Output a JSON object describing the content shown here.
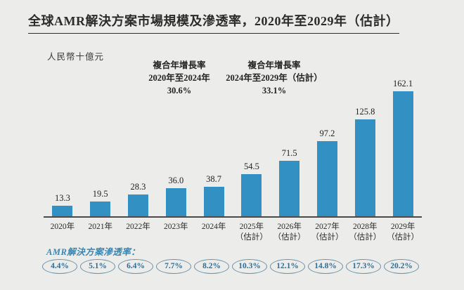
{
  "title": "全球AMR解決方案市場規模及滲透率，2020年至2029年（估計）",
  "unit_label": "人民幣十億元",
  "annotations": [
    {
      "line1": "複合年增長率",
      "line2": "2020年至2024年",
      "value": "30.6%"
    },
    {
      "line1": "複合年增長率",
      "line2": "2024年至2029年（估計）",
      "value": "33.1%"
    }
  ],
  "chart_data": {
    "type": "bar",
    "title": "全球AMR解決方案市場規模及滲透率，2020年至2029年（估計）",
    "ylabel": "人民幣十億元",
    "xlabel": "",
    "ylim": [
      0,
      165
    ],
    "grid": false,
    "categories": [
      {
        "label": "2020年",
        "sublabel": ""
      },
      {
        "label": "2021年",
        "sublabel": ""
      },
      {
        "label": "2022年",
        "sublabel": ""
      },
      {
        "label": "2023年",
        "sublabel": ""
      },
      {
        "label": "2024年",
        "sublabel": ""
      },
      {
        "label": "2025年",
        "sublabel": "（估計）"
      },
      {
        "label": "2026年",
        "sublabel": "（估計）"
      },
      {
        "label": "2027年",
        "sublabel": "（估計）"
      },
      {
        "label": "2028年",
        "sublabel": "（估計）"
      },
      {
        "label": "2029年",
        "sublabel": "（估計）"
      }
    ],
    "values": [
      13.3,
      19.5,
      28.3,
      36.0,
      38.7,
      54.5,
      71.5,
      97.2,
      125.8,
      162.1
    ],
    "value_labels": [
      "13.3",
      "19.5",
      "28.3",
      "36.0",
      "38.7",
      "54.5",
      "71.5",
      "97.2",
      "125.8",
      "162.1"
    ],
    "penetration_series": {
      "name": "AMR解決方案滲透率",
      "values": [
        "4.4%",
        "5.1%",
        "6.4%",
        "7.7%",
        "8.2%",
        "10.3%",
        "12.1%",
        "14.8%",
        "17.3%",
        "20.2%"
      ]
    }
  },
  "penetration": {
    "label": "AMR解決方案滲透率："
  },
  "colors": {
    "background": "#ececea",
    "bar": "#3390c3",
    "axis": "#4a4a4a",
    "text": "#2b2b2b",
    "penetration_text": "#2c6e97",
    "penetration_border": "#6b92a8",
    "penetration_label": "#3b86b0"
  }
}
